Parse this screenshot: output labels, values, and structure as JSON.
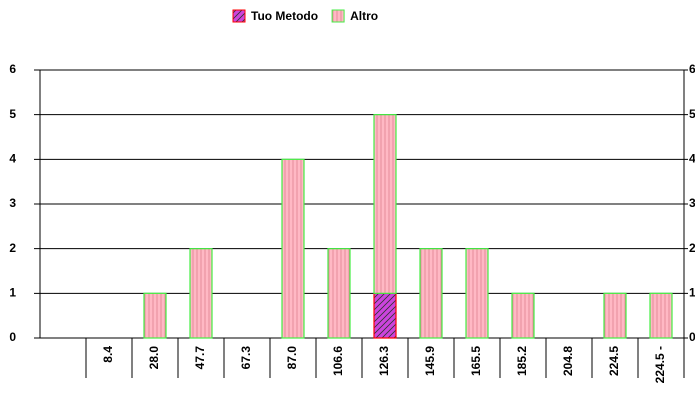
{
  "chart_data": {
    "type": "bar",
    "stacked": true,
    "categories": [
      null,
      "8.4",
      "28.0",
      "47.7",
      "67.3",
      "87.0",
      "106.6",
      "126.3",
      "145.9",
      "165.5",
      "185.2",
      "204.8",
      "224.5",
      "224.5 -"
    ],
    "series": [
      {
        "name": "Tuo Metodo",
        "color": "#cc44dd",
        "edgecolor": "#ff0000",
        "values": [
          0,
          0,
          0,
          0,
          0,
          0,
          0,
          1,
          0,
          0,
          0,
          0,
          0,
          0
        ]
      },
      {
        "name": "Altro",
        "color": "#ffb8c4",
        "edgecolor": "#44ee44",
        "values": [
          0,
          0,
          1,
          2,
          0,
          4,
          2,
          4,
          2,
          2,
          1,
          0,
          1,
          1
        ]
      }
    ],
    "ylim": [
      0,
      6
    ],
    "yticks": [
      0,
      1,
      2,
      3,
      4,
      5,
      6
    ],
    "grid": true,
    "legend": "top"
  }
}
